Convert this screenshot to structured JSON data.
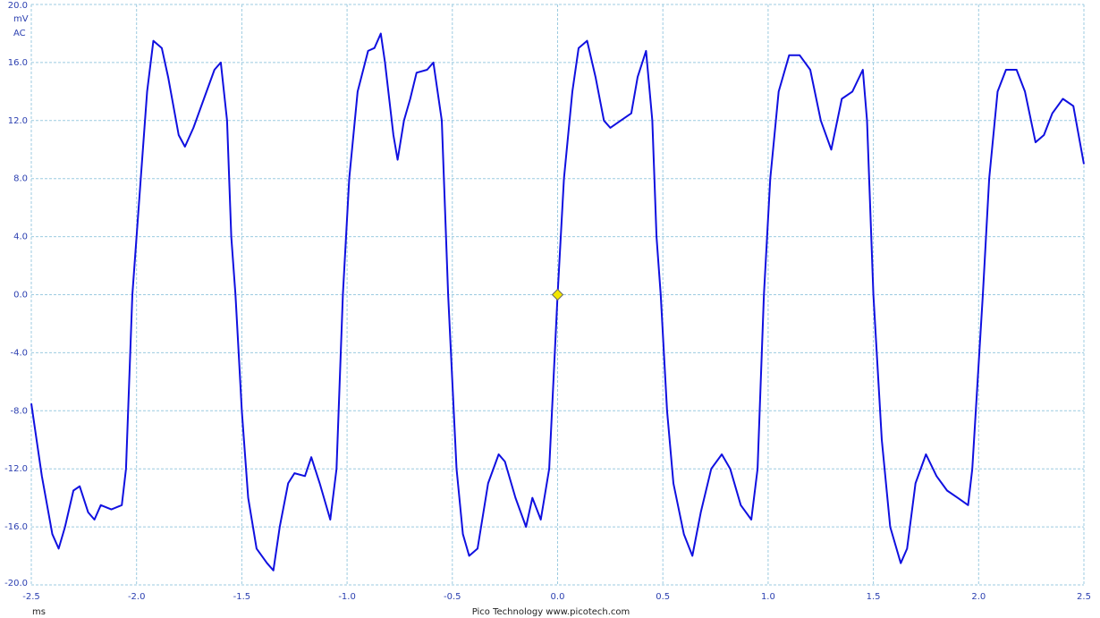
{
  "chart_data": {
    "type": "line",
    "y_unit": "mV",
    "coupling": "AC",
    "x_unit": "ms",
    "footer": "Pico Technology  www.picotech.com",
    "xlim": [
      -2.5,
      2.5
    ],
    "ylim": [
      -20,
      20
    ],
    "xticks": [
      -2.5,
      {
        "value": -2,
        "label": "-2.0"
      },
      -1.5,
      {
        "value": -1,
        "label": "-1.0"
      },
      -0.5,
      {
        "value": 0,
        "label": "0.0"
      },
      0.5,
      {
        "value": 1,
        "label": "1.0"
      },
      1.5,
      {
        "value": 2,
        "label": "2.0"
      },
      2.5
    ],
    "yticks": [
      {
        "value": 20,
        "label": "20.0"
      },
      {
        "value": 16,
        "label": "16.0"
      },
      {
        "value": 12,
        "label": "12.0"
      },
      {
        "value": 8,
        "label": "8.0"
      },
      {
        "value": 4,
        "label": "4.0"
      },
      {
        "value": 0,
        "label": "0.0"
      },
      {
        "value": -4,
        "label": "-4.0"
      },
      {
        "value": -8,
        "label": "-8.0"
      },
      {
        "value": -12,
        "label": "-12.0"
      },
      {
        "value": -16,
        "label": "-16.0"
      },
      {
        "value": -20,
        "label": "-20.0"
      }
    ],
    "grid": true,
    "marker": {
      "x": 0,
      "y": 0,
      "color": "#f2e600"
    },
    "x": [
      -2.5,
      -2.45,
      -2.4,
      -2.37,
      -2.34,
      -2.3,
      -2.27,
      -2.23,
      -2.2,
      -2.17,
      -2.12,
      -2.07,
      -2.05,
      -2.02,
      -1.98,
      -1.95,
      -1.92,
      -1.88,
      -1.85,
      -1.8,
      -1.77,
      -1.73,
      -1.68,
      -1.63,
      -1.6,
      -1.57,
      -1.55,
      -1.53,
      -1.5,
      -1.47,
      -1.43,
      -1.38,
      -1.35,
      -1.32,
      -1.28,
      -1.25,
      -1.2,
      -1.17,
      -1.13,
      -1.08,
      -1.05,
      -1.02,
      -0.99,
      -0.95,
      -0.9,
      -0.87,
      -0.84,
      -0.82,
      -0.78,
      -0.76,
      -0.73,
      -0.7,
      -0.67,
      -0.62,
      -0.59,
      -0.55,
      -0.52,
      -0.48,
      -0.45,
      -0.42,
      -0.38,
      -0.33,
      -0.28,
      -0.25,
      -0.2,
      -0.15,
      -0.12,
      -0.08,
      -0.04,
      0,
      0.03,
      0.07,
      0.1,
      0.14,
      0.18,
      0.22,
      0.25,
      0.3,
      0.35,
      0.38,
      0.42,
      0.45,
      0.47,
      0.49,
      0.52,
      0.55,
      0.6,
      0.64,
      0.68,
      0.73,
      0.78,
      0.82,
      0.87,
      0.92,
      0.95,
      0.98,
      1.01,
      1.05,
      1.1,
      1.15,
      1.2,
      1.25,
      1.3,
      1.35,
      1.4,
      1.45,
      1.47,
      1.5,
      1.54,
      1.58,
      1.63,
      1.66,
      1.7,
      1.75,
      1.8,
      1.85,
      1.9,
      1.95,
      1.97,
      2.02,
      2.05,
      2.09,
      2.13,
      2.18,
      2.22,
      2.27,
      2.31,
      2.35,
      2.4,
      2.45,
      2.5
    ],
    "series": [
      {
        "color": "#1010e0",
        "values": [
          -7.5,
          -12.5,
          -16.5,
          -17.5,
          -16,
          -13.5,
          -13.2,
          -15,
          -15.5,
          -14.5,
          -14.8,
          -14.5,
          -12,
          0,
          8,
          14,
          17.5,
          17,
          15,
          11,
          10.2,
          11.5,
          13.5,
          15.5,
          16,
          12,
          4,
          0,
          -8,
          -14,
          -17.5,
          -18.5,
          -19,
          -16,
          -13,
          -12.3,
          -12.5,
          -11.2,
          -13,
          -15.5,
          -12,
          0,
          8,
          14,
          16.8,
          17,
          18,
          16,
          11,
          9.3,
          12,
          13.5,
          15.3,
          15.5,
          16,
          12,
          0,
          -12,
          -16.5,
          -18,
          -17.5,
          -13,
          -11,
          -11.5,
          -14,
          -16,
          -14,
          -15.5,
          -12,
          0,
          8,
          14,
          17,
          17.5,
          15,
          12,
          11.5,
          12,
          12.5,
          15,
          16.8,
          12,
          4,
          0,
          -8,
          -13,
          -16.5,
          -18,
          -15,
          -12,
          -11,
          -12,
          -14.5,
          -15.5,
          -12,
          0,
          8,
          14,
          16.5,
          16.5,
          15.5,
          12,
          10,
          13.5,
          14,
          15.5,
          12,
          0,
          -10,
          -16,
          -18.5,
          -17.5,
          -13,
          -11,
          -12.5,
          -13.5,
          -14,
          -14.5,
          -12,
          0,
          8,
          14,
          15.5,
          15.5,
          14,
          10.5,
          11,
          12.5,
          13.5,
          13,
          9
        ]
      }
    ]
  }
}
